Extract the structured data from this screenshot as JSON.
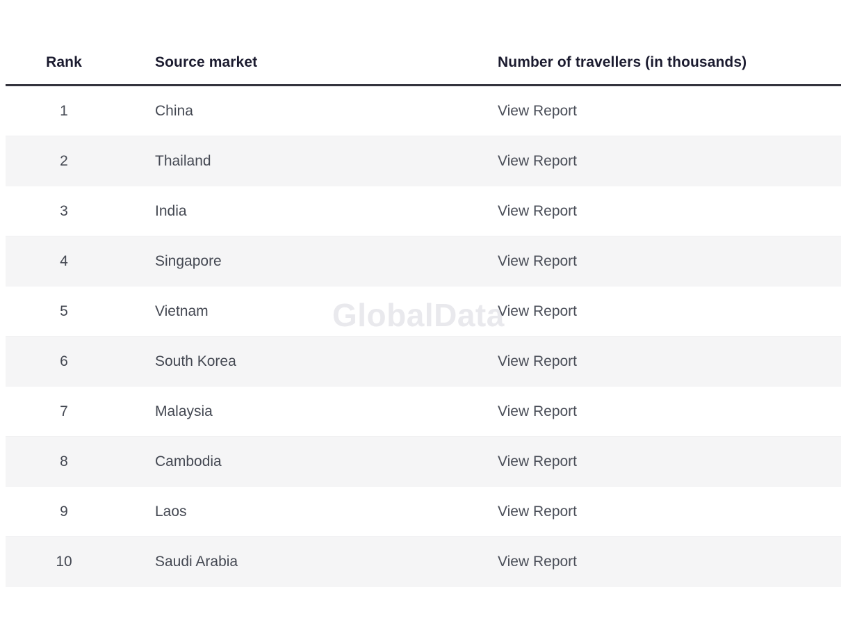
{
  "chart_data": {
    "type": "table",
    "columns": [
      "Rank",
      "Source market",
      "Number of travellers (in thousands)"
    ],
    "rows": [
      {
        "rank": "1",
        "market": "China",
        "report": "View Report"
      },
      {
        "rank": "2",
        "market": "Thailand",
        "report": "View Report"
      },
      {
        "rank": "3",
        "market": "India",
        "report": "View Report"
      },
      {
        "rank": "4",
        "market": "Singapore",
        "report": "View Report"
      },
      {
        "rank": "5",
        "market": "Vietnam",
        "report": "View Report"
      },
      {
        "rank": "6",
        "market": "South Korea",
        "report": "View Report"
      },
      {
        "rank": "7",
        "market": "Malaysia",
        "report": "View Report"
      },
      {
        "rank": "8",
        "market": "Cambodia",
        "report": "View Report"
      },
      {
        "rank": "9",
        "market": "Laos",
        "report": "View Report"
      },
      {
        "rank": "10",
        "market": "Saudi Arabia",
        "report": "View Report"
      }
    ]
  },
  "watermark": "GlobalData",
  "colors": {
    "header_text": "#1b1b2f",
    "body_text": "#444852",
    "stripe": "#f5f5f6",
    "header_border": "#33333d"
  }
}
